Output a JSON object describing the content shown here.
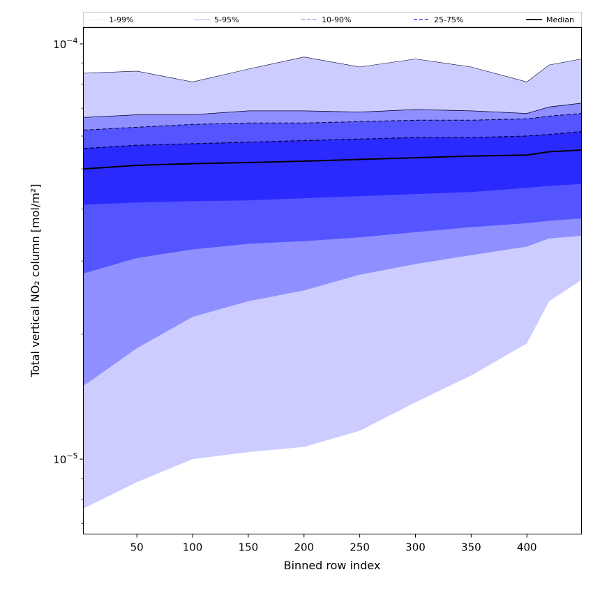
{
  "chart_data": {
    "type": "area",
    "xlabel": "Binned row index",
    "ylabel": "Total vertical NO₂ column [mol/m²]",
    "yscale": "log",
    "xlim": [
      2,
      449
    ],
    "ylim": [
      6.6e-06,
      0.0001095
    ],
    "x_ticks": [
      50,
      100,
      150,
      200,
      250,
      300,
      350,
      400
    ],
    "y_major_ticks": [
      1e-05,
      0.0001
    ],
    "y_tick_labels": [
      {
        "base": "10",
        "exp": "−5"
      },
      {
        "base": "10",
        "exp": "−4"
      }
    ],
    "grid": false,
    "legend": {
      "placement": "top",
      "entries": [
        "1-99%",
        "5-95%",
        "10-90%",
        "25-75%",
        "Median"
      ]
    },
    "colors": {
      "band_1_99": "#ccccff",
      "band_5_95": "#8f8fff",
      "band_10_90": "#5555ff",
      "band_25_75": "#2a2aff",
      "median": "#000000"
    },
    "x": [
      2,
      50,
      100,
      150,
      200,
      250,
      300,
      350,
      400,
      420,
      449
    ],
    "series": [
      {
        "name": "1-99%",
        "lower": [
          7.6e-06,
          8.8e-06,
          1e-05,
          1.04e-05,
          1.07e-05,
          1.17e-05,
          1.37e-05,
          1.59e-05,
          1.9e-05,
          2.4e-05,
          2.7e-05
        ],
        "upper": [
          8.5e-05,
          8.6e-05,
          8.1e-05,
          8.7e-05,
          9.3e-05,
          8.8e-05,
          9.2e-05,
          8.8e-05,
          8.1e-05,
          8.9e-05,
          9.2e-05
        ]
      },
      {
        "name": "5-95%",
        "lower": [
          1.5e-05,
          1.85e-05,
          2.2e-05,
          2.4e-05,
          2.55e-05,
          2.78e-05,
          2.95e-05,
          3.1e-05,
          3.25e-05,
          3.4e-05,
          3.45e-05
        ],
        "upper": [
          6.65e-05,
          6.75e-05,
          6.75e-05,
          6.9e-05,
          6.9e-05,
          6.85e-05,
          6.95e-05,
          6.9e-05,
          6.8e-05,
          7.05e-05,
          7.2e-05
        ]
      },
      {
        "name": "10-90%",
        "lower": [
          2.8e-05,
          3.05e-05,
          3.2e-05,
          3.3e-05,
          3.35e-05,
          3.42e-05,
          3.52e-05,
          3.62e-05,
          3.7e-05,
          3.75e-05,
          3.8e-05
        ],
        "upper": [
          6.2e-05,
          6.3e-05,
          6.4e-05,
          6.45e-05,
          6.45e-05,
          6.5e-05,
          6.55e-05,
          6.55e-05,
          6.6e-05,
          6.7e-05,
          6.8e-05
        ]
      },
      {
        "name": "25-75%",
        "lower": [
          4.1e-05,
          4.15e-05,
          4.18e-05,
          4.2e-05,
          4.25e-05,
          4.3e-05,
          4.35e-05,
          4.4e-05,
          4.5e-05,
          4.55e-05,
          4.6e-05
        ],
        "upper": [
          5.6e-05,
          5.7e-05,
          5.75e-05,
          5.8e-05,
          5.85e-05,
          5.9e-05,
          5.95e-05,
          5.95e-05,
          6e-05,
          6.05e-05,
          6.15e-05
        ]
      },
      {
        "name": "Median",
        "values": [
          5e-05,
          5.1e-05,
          5.15e-05,
          5.18e-05,
          5.22e-05,
          5.27e-05,
          5.32e-05,
          5.37e-05,
          5.4e-05,
          5.5e-05,
          5.55e-05
        ]
      }
    ]
  }
}
